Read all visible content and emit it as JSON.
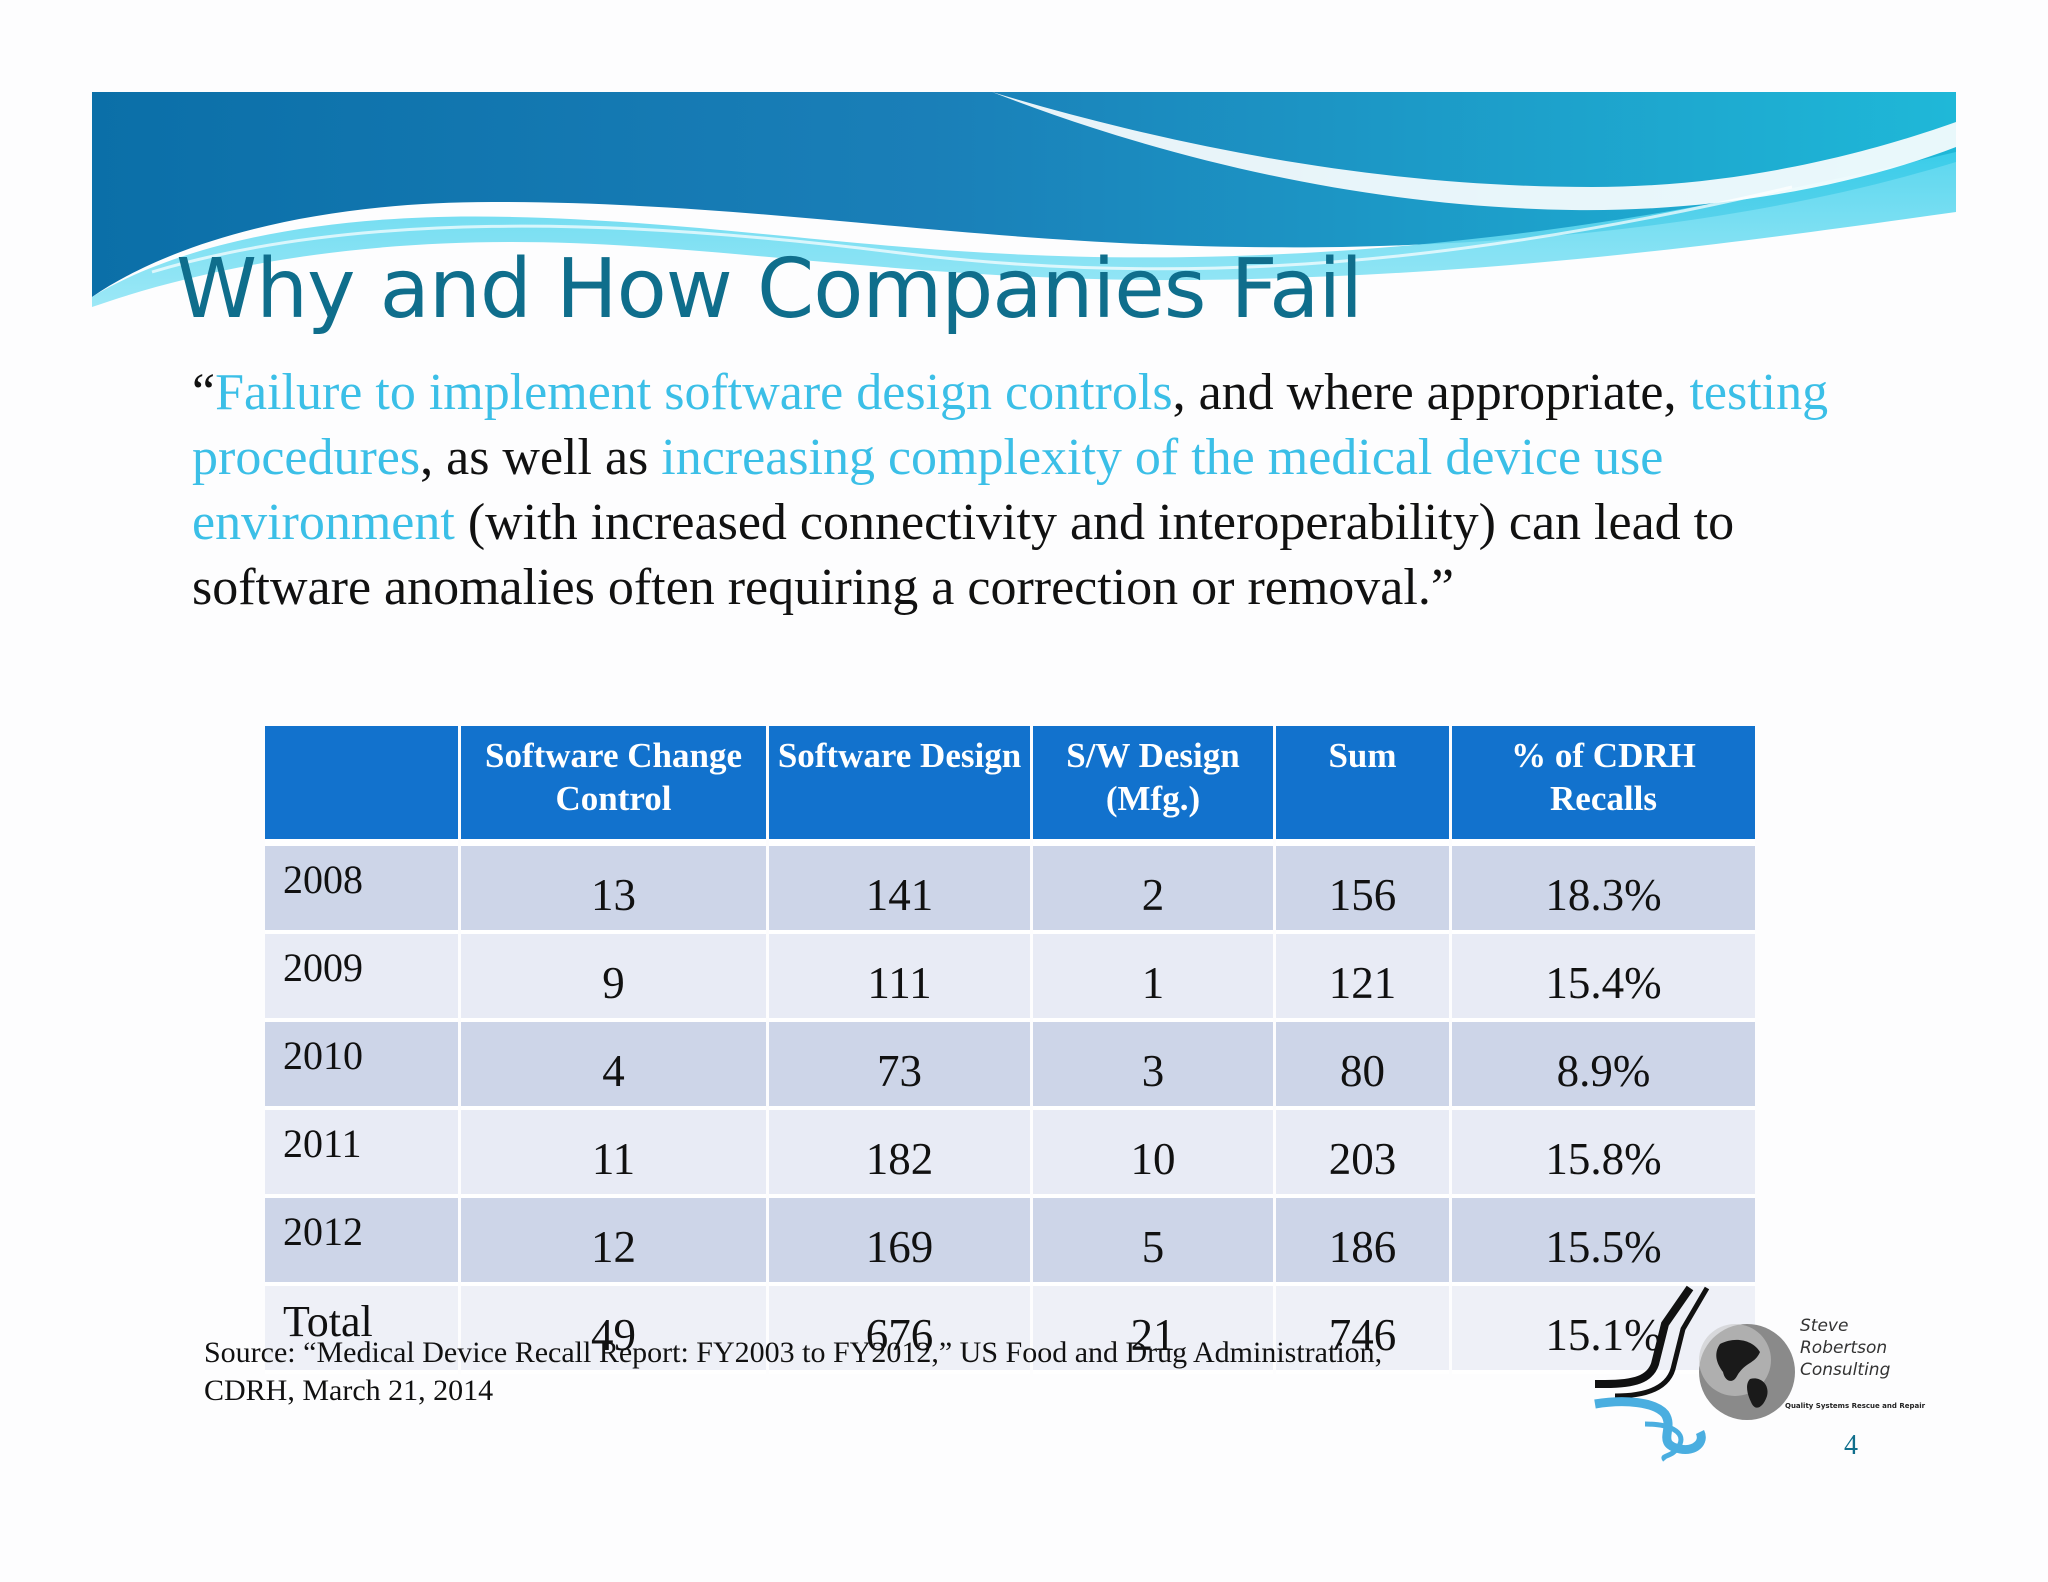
{
  "slide": {
    "title": "Why and How Companies Fail",
    "quote": {
      "open_mark": "“",
      "hl1": "Failure to implement software design controls",
      "t1": ", and where appropriate, ",
      "hl2": "testing procedures",
      "t2": ", as well as ",
      "hl3": "increasing complexity of the medical device use environment",
      "t3": " (with increased connectivity and interoperability) can lead to software anomalies often requiring a correction or removal.”"
    },
    "colors": {
      "title": "#0f6e8c",
      "highlight": "#3bbfe7",
      "table_header": "#1272cd",
      "row_odd": "#cdd5e8",
      "row_even": "#e8ebf5"
    },
    "table": {
      "headers": [
        "",
        "Software Change Control",
        "Software Design",
        "S/W Design (Mfg.)",
        "Sum",
        "% of CDRH Recalls"
      ],
      "rows": [
        [
          "2008",
          "13",
          "141",
          "2",
          "156",
          "18.3%"
        ],
        [
          "2009",
          "9",
          "111",
          "1",
          "121",
          "15.4%"
        ],
        [
          "2010",
          "4",
          "73",
          "3",
          "80",
          "8.9%"
        ],
        [
          "2011",
          "11",
          "182",
          "10",
          "203",
          "15.8%"
        ],
        [
          "2012",
          "12",
          "169",
          "5",
          "186",
          "15.5%"
        ],
        [
          "Total",
          "49",
          "676",
          "21",
          "746",
          "15.1%"
        ]
      ]
    },
    "source_line1": "Source: “Medical Device Recall Report: FY2003 to FY2012,” US Food and Drug Administration,",
    "source_line2": "CDRH, March 21, 2014",
    "logo": {
      "name_line1": "Steve",
      "name_line2": "Robertson",
      "name_line3": "Consulting",
      "tagline": "Quality Systems Rescue and Repair"
    },
    "page_number": "4"
  }
}
